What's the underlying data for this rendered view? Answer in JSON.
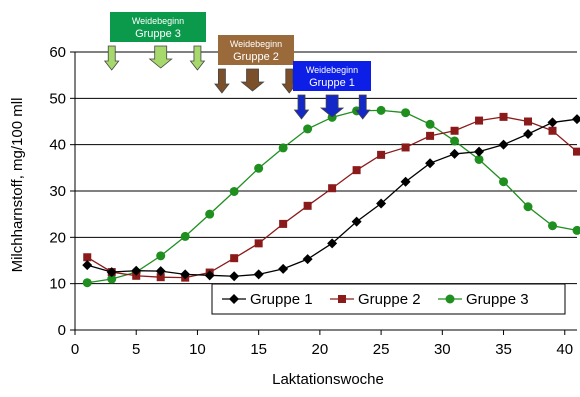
{
  "chart_data": {
    "type": "line",
    "title": "",
    "xlabel": "Laktationswoche",
    "ylabel": "Milchharnstoff, mg/100 mll",
    "xlim": [
      0,
      41
    ],
    "ylim": [
      0,
      60
    ],
    "xticks": [
      0,
      5,
      10,
      15,
      20,
      25,
      30,
      35,
      40
    ],
    "yticks": [
      0,
      10,
      20,
      30,
      40,
      50,
      60
    ],
    "grid": "horizontal",
    "legend": "bottom-right",
    "x": [
      1,
      3,
      5,
      7,
      9,
      11,
      13,
      15,
      17,
      19,
      21,
      23,
      25,
      27,
      29,
      31,
      33,
      35,
      37,
      39,
      41
    ],
    "series": [
      {
        "name": "Gruppe 1",
        "color": "#000000",
        "marker": "diamond",
        "values": [
          14.0,
          12.5,
          12.8,
          12.7,
          12.0,
          11.8,
          11.6,
          12.0,
          13.2,
          15.3,
          18.7,
          23.4,
          27.3,
          32.0,
          36.0,
          38.0,
          38.5,
          40.0,
          42.3,
          44.8,
          45.5
        ]
      },
      {
        "name": "Gruppe 2",
        "color": "#8b1a1a",
        "marker": "square",
        "values": [
          15.7,
          12.5,
          11.7,
          11.4,
          11.3,
          12.4,
          15.5,
          18.7,
          22.9,
          26.8,
          30.6,
          34.5,
          37.8,
          39.4,
          41.9,
          43.0,
          45.2,
          46.0,
          45.0,
          43.0,
          38.5
        ]
      },
      {
        "name": "Gruppe 3",
        "color": "#1f8f1f",
        "marker": "circle",
        "values": [
          10.2,
          11.0,
          12.5,
          16.0,
          20.2,
          25.0,
          29.9,
          34.9,
          39.3,
          43.4,
          45.9,
          47.3,
          47.4,
          46.9,
          44.4,
          40.8,
          36.8,
          32.0,
          26.6,
          22.5,
          21.5
        ]
      }
    ],
    "annotations": [
      {
        "label_line1": "Weidebeginn",
        "label_line2": "Gruppe 3",
        "color": "#0b9a4c",
        "arrow_color": "#a6d86c",
        "arrow_weeks": [
          3,
          7,
          10
        ]
      },
      {
        "label_line1": "Weidebeginn",
        "label_line2": "Gruppe 2",
        "color": "#9b6a3a",
        "arrow_color": "#7a4f2a",
        "arrow_weeks": [
          12,
          14.5,
          17.5
        ]
      },
      {
        "label_line1": "Weidebeginn",
        "label_line2": "Gruppe 1",
        "color": "#0d1ee6",
        "arrow_color": "#1428c8",
        "arrow_weeks": [
          18.5,
          21,
          23.5
        ]
      }
    ]
  }
}
